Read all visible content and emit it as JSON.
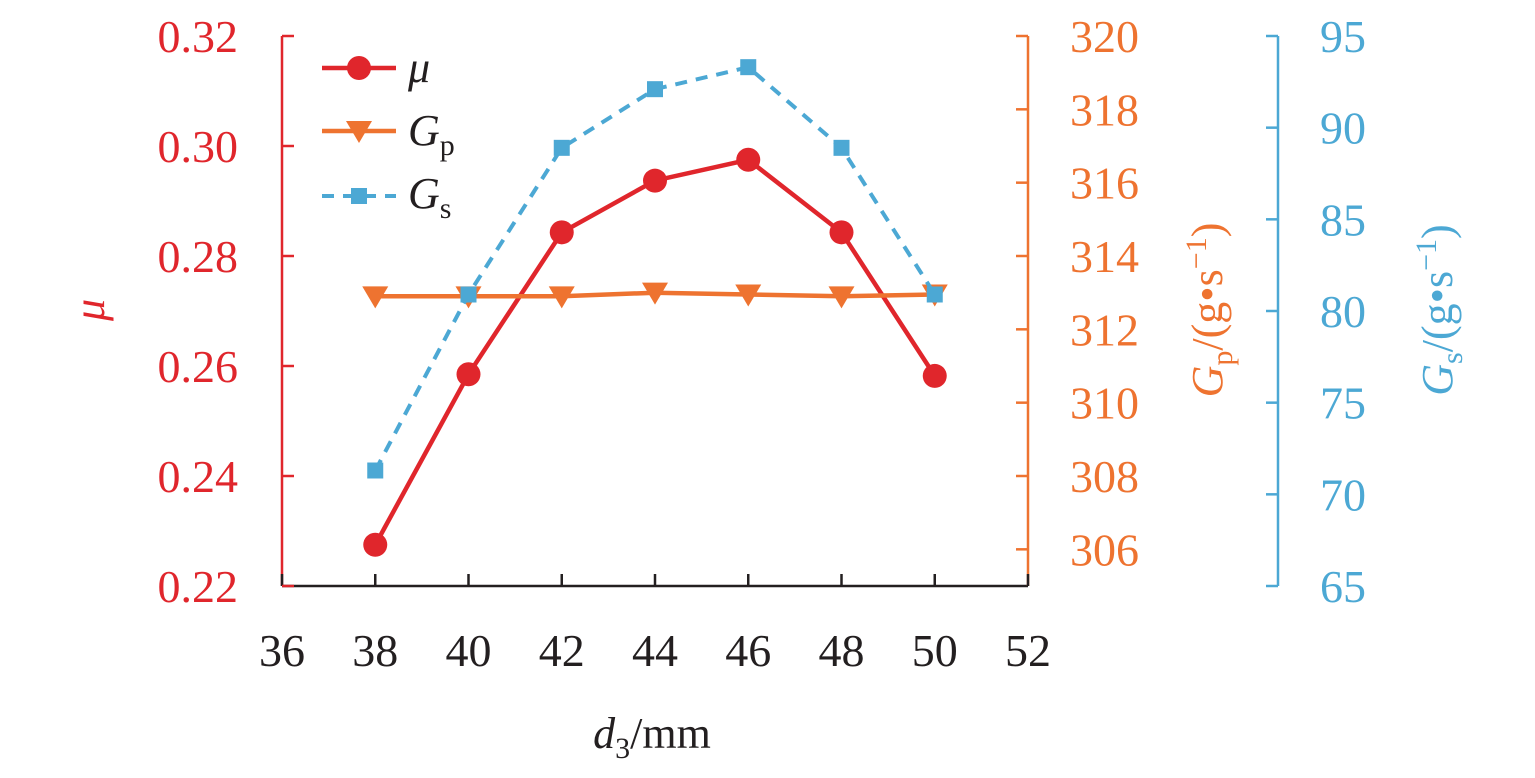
{
  "colors": {
    "mu": "#e0262c",
    "gp": "#ee7330",
    "gs": "#4ca8d4",
    "x_axis": "#231f20"
  },
  "chart_data": {
    "type": "line",
    "x": [
      38,
      40,
      42,
      44,
      46,
      48,
      50
    ],
    "xlabel": {
      "main": "d",
      "sub": "3",
      "unit": "/mm"
    },
    "xlim": [
      36,
      52
    ],
    "x_ticks": [
      "36",
      "38",
      "40",
      "42",
      "44",
      "46",
      "48",
      "50",
      "52"
    ],
    "axes": {
      "mu": {
        "label": "μ",
        "ylim": [
          0.22,
          0.32
        ],
        "ticks": [
          "0.22",
          "0.24",
          "0.26",
          "0.28",
          "0.30",
          "0.32"
        ]
      },
      "gp": {
        "label": {
          "main": "G",
          "sub": "p",
          "unit": "/(g•s",
          "sup": "−1",
          "close": ")"
        },
        "ylim": [
          305,
          320
        ],
        "ticks": [
          "306",
          "308",
          "310",
          "312",
          "314",
          "316",
          "318",
          "320"
        ]
      },
      "gs": {
        "label": {
          "main": "G",
          "sub": "s",
          "unit": "/(g•s",
          "sup": "−1",
          "close": ")"
        },
        "ylim": [
          65,
          95
        ],
        "ticks": [
          "65",
          "70",
          "75",
          "80",
          "85",
          "90",
          "95"
        ]
      }
    },
    "series": [
      {
        "name": "μ",
        "axis": "mu",
        "marker": "circle",
        "style": "solid",
        "values": [
          0.2275,
          0.2585,
          0.2843,
          0.2937,
          0.2975,
          0.2843,
          0.2582
        ]
      },
      {
        "name": "G",
        "name_sub": "p",
        "axis": "gp",
        "marker": "triangle-down",
        "style": "solid",
        "values": [
          312.9,
          312.9,
          312.9,
          313.0,
          312.95,
          312.9,
          312.95
        ]
      },
      {
        "name": "G",
        "name_sub": "s",
        "axis": "gs",
        "marker": "square",
        "style": "dashed",
        "values": [
          71.3,
          80.9,
          88.9,
          92.1,
          93.3,
          88.9,
          80.9
        ]
      }
    ],
    "legend": {
      "placement": "top-left"
    },
    "grid": false
  }
}
